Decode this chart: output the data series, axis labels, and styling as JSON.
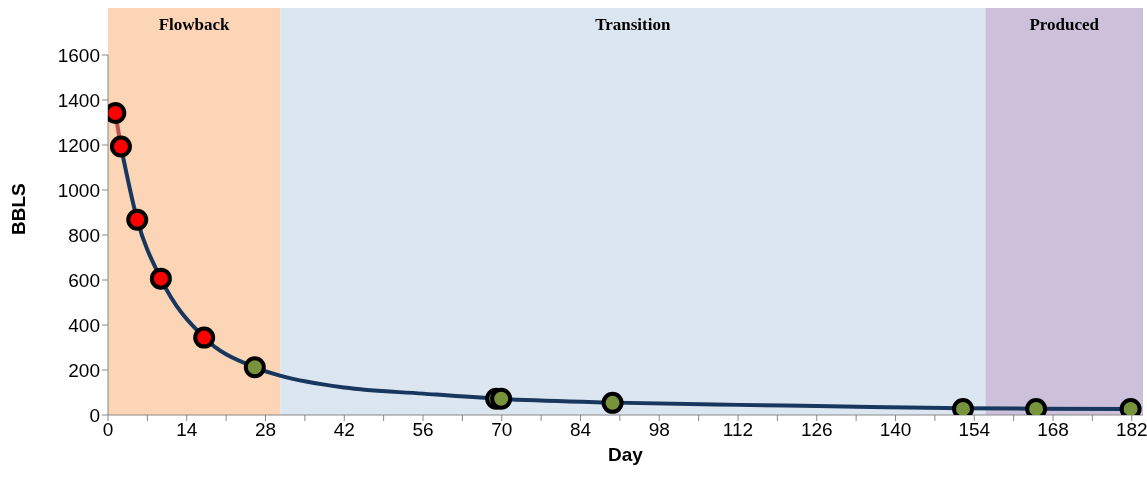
{
  "chart_data": {
    "type": "scatter",
    "xlabel": "Day",
    "ylabel": "BBLS",
    "xlim": [
      0,
      184
    ],
    "ylim": [
      0,
      1600
    ],
    "xticks": [
      0,
      {
        "value": 7,
        "label": null
      },
      14,
      {
        "value": 21,
        "label": null
      },
      28,
      {
        "value": 35,
        "label": null
      },
      42,
      {
        "value": 49,
        "label": null
      },
      56,
      {
        "value": 63,
        "label": null
      },
      70,
      {
        "value": 77,
        "label": null
      },
      84,
      {
        "value": 91,
        "label": null
      },
      98,
      {
        "value": 105,
        "label": null
      },
      112,
      {
        "value": 119,
        "label": null
      },
      126,
      {
        "value": 133,
        "label": null
      },
      140,
      {
        "value": 147,
        "label": null
      },
      154,
      {
        "value": 161,
        "label": null
      },
      168,
      {
        "value": 175,
        "label": null
      },
      182
    ],
    "yticks": [
      0,
      200,
      400,
      600,
      800,
      1000,
      1200,
      1400,
      1600
    ],
    "grid": false,
    "marker": "circle",
    "bands": [
      {
        "axis": "x",
        "from": 0,
        "to": 30.6,
        "label": "Flowback",
        "color": "#fbd5b5"
      },
      {
        "axis": "x",
        "from": 30.6,
        "to": 156,
        "label": "Transition",
        "color": "#dce6f1"
      },
      {
        "axis": "x",
        "from": 156,
        "to": 184,
        "label": "Produced",
        "color": "#ccc0da"
      }
    ],
    "series": [
      {
        "type": "line",
        "color": "#c0504d",
        "x": [
          1.3,
          2.3
        ],
        "values": [
          1342,
          1193
        ],
        "marker": "none"
      },
      {
        "type": "line",
        "color": "#17375e",
        "x": [
          2.3,
          5.2,
          9.4,
          17.1,
          26.1,
          30.6,
          42,
          56,
          69.5,
          90,
          112,
          126,
          152,
          165,
          182
        ],
        "values": [
          1193,
          868,
          606,
          344,
          212,
          175,
          122,
          95,
          72,
          55,
          45,
          40,
          30,
          28,
          27
        ],
        "marker": "none"
      },
      {
        "color": "#ff0000",
        "x": [
          1.3,
          2.3,
          5.2,
          9.4,
          17.1
        ],
        "values": [
          1342,
          1193,
          868,
          606,
          344
        ]
      },
      {
        "color": "#77933c",
        "x": [
          26.1,
          69,
          69.9,
          89.7,
          152,
          165,
          181.8
        ],
        "values": [
          212,
          72,
          72,
          54,
          27,
          27,
          27
        ]
      }
    ]
  }
}
